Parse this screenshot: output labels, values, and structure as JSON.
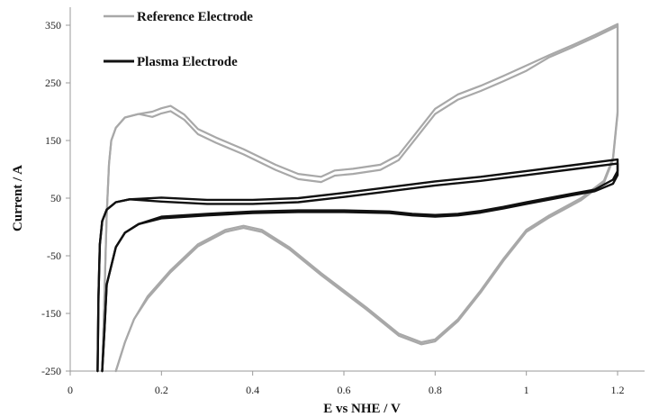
{
  "chart_data": {
    "type": "line",
    "xlabel": "E vs NHE / V",
    "ylabel": "Current / A",
    "xlim": [
      0,
      1.2
    ],
    "ylim": [
      -250,
      350
    ],
    "x_ticks": [
      "0",
      "0.2",
      "0.4",
      "0.6",
      "0.8",
      "1",
      "1.2"
    ],
    "y_ticks": [
      "350",
      "250",
      "150",
      "50",
      "-50",
      "-150",
      "-250"
    ],
    "grid": false,
    "legend_position": "top-left",
    "series": [
      {
        "name": "Reference Electrode",
        "color": "#a8a8a8",
        "cycles": 2,
        "points": [
          [
            0.07,
            -250
          ],
          [
            0.075,
            -120
          ],
          [
            0.08,
            20
          ],
          [
            0.085,
            110
          ],
          [
            0.09,
            150
          ],
          [
            0.1,
            172
          ],
          [
            0.12,
            190
          ],
          [
            0.15,
            196
          ],
          [
            0.18,
            200
          ],
          [
            0.2,
            206
          ],
          [
            0.22,
            210
          ],
          [
            0.25,
            195
          ],
          [
            0.28,
            170
          ],
          [
            0.32,
            155
          ],
          [
            0.38,
            135
          ],
          [
            0.45,
            108
          ],
          [
            0.5,
            92
          ],
          [
            0.55,
            87
          ],
          [
            0.58,
            98
          ],
          [
            0.62,
            101
          ],
          [
            0.68,
            108
          ],
          [
            0.72,
            125
          ],
          [
            0.76,
            165
          ],
          [
            0.8,
            205
          ],
          [
            0.85,
            230
          ],
          [
            0.9,
            245
          ],
          [
            0.95,
            262
          ],
          [
            1.0,
            280
          ],
          [
            1.05,
            298
          ],
          [
            1.1,
            315
          ],
          [
            1.15,
            333
          ],
          [
            1.2,
            352
          ],
          [
            1.2,
            200
          ],
          [
            1.19,
            120
          ],
          [
            1.17,
            80
          ],
          [
            1.12,
            50
          ],
          [
            1.05,
            20
          ],
          [
            1.0,
            -5
          ],
          [
            0.95,
            -55
          ],
          [
            0.9,
            -110
          ],
          [
            0.85,
            -160
          ],
          [
            0.8,
            -195
          ],
          [
            0.77,
            -200
          ],
          [
            0.72,
            -185
          ],
          [
            0.65,
            -140
          ],
          [
            0.55,
            -80
          ],
          [
            0.48,
            -35
          ],
          [
            0.42,
            -5
          ],
          [
            0.38,
            2
          ],
          [
            0.34,
            -5
          ],
          [
            0.28,
            -30
          ],
          [
            0.22,
            -75
          ],
          [
            0.17,
            -120
          ],
          [
            0.14,
            -160
          ],
          [
            0.12,
            -200
          ],
          [
            0.1,
            -250
          ]
        ]
      },
      {
        "name": "Plasma Electrode",
        "color": "#111111",
        "cycles": 2,
        "points": [
          [
            0.06,
            -250
          ],
          [
            0.062,
            -120
          ],
          [
            0.065,
            -30
          ],
          [
            0.07,
            10
          ],
          [
            0.08,
            30
          ],
          [
            0.1,
            43
          ],
          [
            0.13,
            48
          ],
          [
            0.2,
            44
          ],
          [
            0.3,
            40
          ],
          [
            0.4,
            40
          ],
          [
            0.5,
            43
          ],
          [
            0.6,
            52
          ],
          [
            0.7,
            62
          ],
          [
            0.8,
            72
          ],
          [
            0.9,
            80
          ],
          [
            1.0,
            90
          ],
          [
            1.1,
            100
          ],
          [
            1.2,
            110
          ],
          [
            1.2,
            90
          ],
          [
            1.19,
            75
          ],
          [
            1.15,
            62
          ],
          [
            1.1,
            55
          ],
          [
            1.0,
            40
          ],
          [
            0.95,
            32
          ],
          [
            0.9,
            25
          ],
          [
            0.85,
            20
          ],
          [
            0.8,
            18
          ],
          [
            0.75,
            20
          ],
          [
            0.7,
            24
          ],
          [
            0.6,
            26
          ],
          [
            0.5,
            26
          ],
          [
            0.4,
            24
          ],
          [
            0.3,
            20
          ],
          [
            0.2,
            15
          ],
          [
            0.15,
            5
          ],
          [
            0.12,
            -10
          ],
          [
            0.1,
            -35
          ],
          [
            0.08,
            -100
          ],
          [
            0.075,
            -180
          ],
          [
            0.07,
            -250
          ]
        ]
      }
    ]
  }
}
